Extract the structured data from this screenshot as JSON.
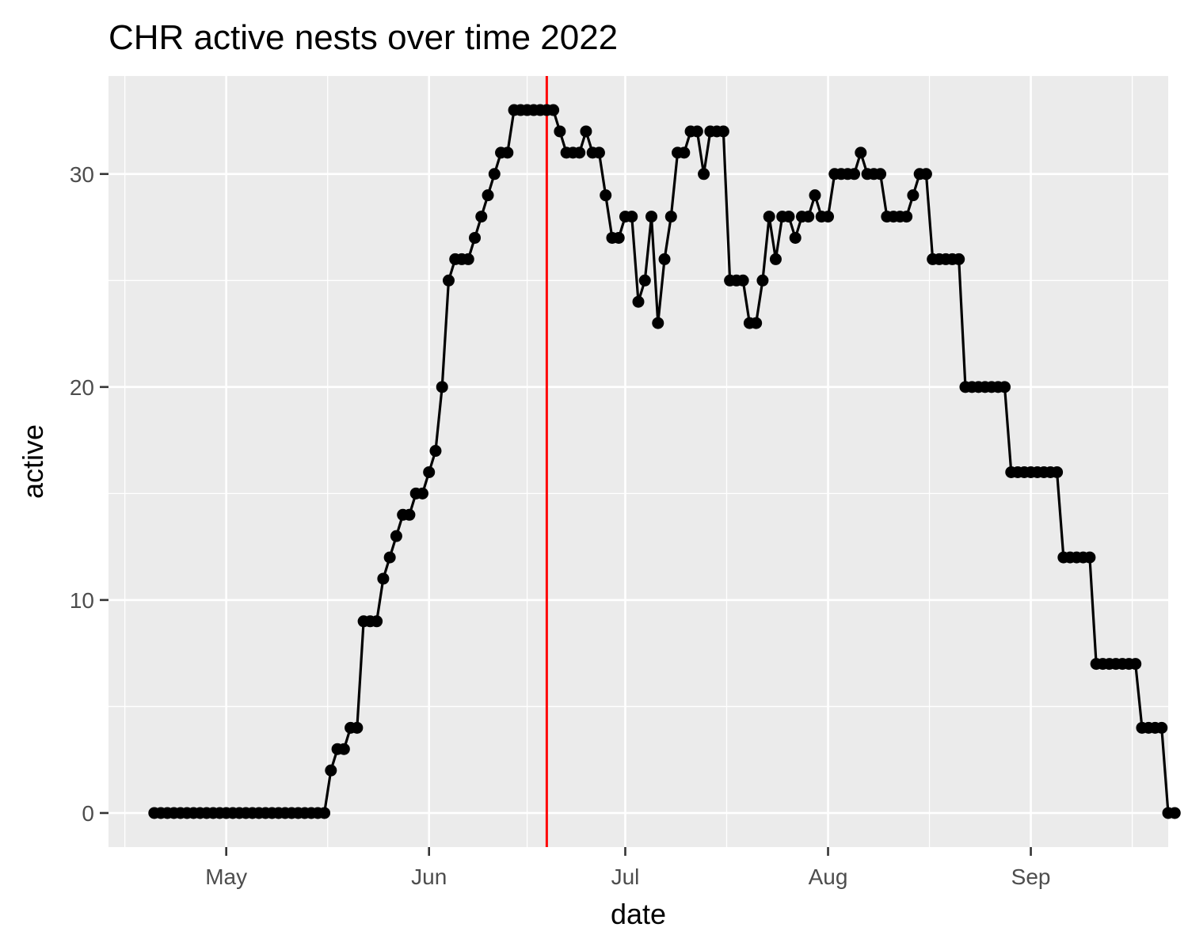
{
  "chart_data": {
    "type": "line",
    "title": "CHR active nests over time 2022",
    "xlabel": "date",
    "ylabel": "active",
    "x_axis": {
      "type": "date",
      "range": [
        "2022-04-13",
        "2022-09-22"
      ],
      "ticks": [
        {
          "date": "2022-05-01",
          "label": "May"
        },
        {
          "date": "2022-06-01",
          "label": "Jun"
        },
        {
          "date": "2022-07-01",
          "label": "Jul"
        },
        {
          "date": "2022-08-01",
          "label": "Aug"
        },
        {
          "date": "2022-09-01",
          "label": "Sep"
        }
      ]
    },
    "y_axis": {
      "range": [
        -1.6,
        34.6
      ],
      "ticks": [
        0,
        10,
        20,
        30
      ]
    },
    "grid": true,
    "reference_line": {
      "orientation": "vertical",
      "date": "2022-06-19",
      "color": "#ff0000"
    },
    "colors": {
      "panel": "#ebebeb",
      "grid": "#ffffff",
      "series": "#000000",
      "axis_text": "#4d4d4d"
    },
    "series": [
      {
        "points": [
          [
            "2022-04-20",
            0
          ],
          [
            "2022-04-21",
            0
          ],
          [
            "2022-04-22",
            0
          ],
          [
            "2022-04-23",
            0
          ],
          [
            "2022-04-24",
            0
          ],
          [
            "2022-04-25",
            0
          ],
          [
            "2022-04-26",
            0
          ],
          [
            "2022-04-27",
            0
          ],
          [
            "2022-04-28",
            0
          ],
          [
            "2022-04-29",
            0
          ],
          [
            "2022-04-30",
            0
          ],
          [
            "2022-05-01",
            0
          ],
          [
            "2022-05-02",
            0
          ],
          [
            "2022-05-03",
            0
          ],
          [
            "2022-05-04",
            0
          ],
          [
            "2022-05-05",
            0
          ],
          [
            "2022-05-06",
            0
          ],
          [
            "2022-05-07",
            0
          ],
          [
            "2022-05-08",
            0
          ],
          [
            "2022-05-09",
            0
          ],
          [
            "2022-05-10",
            0
          ],
          [
            "2022-05-11",
            0
          ],
          [
            "2022-05-12",
            0
          ],
          [
            "2022-05-13",
            0
          ],
          [
            "2022-05-14",
            0
          ],
          [
            "2022-05-15",
            0
          ],
          [
            "2022-05-16",
            0
          ],
          [
            "2022-05-17",
            2
          ],
          [
            "2022-05-18",
            3
          ],
          [
            "2022-05-19",
            3
          ],
          [
            "2022-05-20",
            4
          ],
          [
            "2022-05-21",
            4
          ],
          [
            "2022-05-22",
            9
          ],
          [
            "2022-05-23",
            9
          ],
          [
            "2022-05-24",
            9
          ],
          [
            "2022-05-25",
            11
          ],
          [
            "2022-05-26",
            12
          ],
          [
            "2022-05-27",
            13
          ],
          [
            "2022-05-28",
            14
          ],
          [
            "2022-05-29",
            14
          ],
          [
            "2022-05-30",
            15
          ],
          [
            "2022-05-31",
            15
          ],
          [
            "2022-06-01",
            16
          ],
          [
            "2022-06-02",
            17
          ],
          [
            "2022-06-03",
            20
          ],
          [
            "2022-06-04",
            25
          ],
          [
            "2022-06-05",
            26
          ],
          [
            "2022-06-06",
            26
          ],
          [
            "2022-06-07",
            26
          ],
          [
            "2022-06-08",
            27
          ],
          [
            "2022-06-09",
            28
          ],
          [
            "2022-06-10",
            29
          ],
          [
            "2022-06-11",
            30
          ],
          [
            "2022-06-12",
            31
          ],
          [
            "2022-06-13",
            31
          ],
          [
            "2022-06-14",
            33
          ],
          [
            "2022-06-15",
            33
          ],
          [
            "2022-06-16",
            33
          ],
          [
            "2022-06-17",
            33
          ],
          [
            "2022-06-18",
            33
          ],
          [
            "2022-06-19",
            33
          ],
          [
            "2022-06-20",
            33
          ],
          [
            "2022-06-21",
            32
          ],
          [
            "2022-06-22",
            31
          ],
          [
            "2022-06-23",
            31
          ],
          [
            "2022-06-24",
            31
          ],
          [
            "2022-06-25",
            32
          ],
          [
            "2022-06-26",
            31
          ],
          [
            "2022-06-27",
            31
          ],
          [
            "2022-06-28",
            29
          ],
          [
            "2022-06-29",
            27
          ],
          [
            "2022-06-30",
            27
          ],
          [
            "2022-07-01",
            28
          ],
          [
            "2022-07-02",
            28
          ],
          [
            "2022-07-03",
            24
          ],
          [
            "2022-07-04",
            25
          ],
          [
            "2022-07-05",
            28
          ],
          [
            "2022-07-06",
            23
          ],
          [
            "2022-07-07",
            26
          ],
          [
            "2022-07-08",
            28
          ],
          [
            "2022-07-09",
            31
          ],
          [
            "2022-07-10",
            31
          ],
          [
            "2022-07-11",
            32
          ],
          [
            "2022-07-12",
            32
          ],
          [
            "2022-07-13",
            30
          ],
          [
            "2022-07-14",
            32
          ],
          [
            "2022-07-15",
            32
          ],
          [
            "2022-07-16",
            32
          ],
          [
            "2022-07-17",
            25
          ],
          [
            "2022-07-18",
            25
          ],
          [
            "2022-07-19",
            25
          ],
          [
            "2022-07-20",
            23
          ],
          [
            "2022-07-21",
            23
          ],
          [
            "2022-07-22",
            25
          ],
          [
            "2022-07-23",
            28
          ],
          [
            "2022-07-24",
            26
          ],
          [
            "2022-07-25",
            28
          ],
          [
            "2022-07-26",
            28
          ],
          [
            "2022-07-27",
            27
          ],
          [
            "2022-07-28",
            28
          ],
          [
            "2022-07-29",
            28
          ],
          [
            "2022-07-30",
            29
          ],
          [
            "2022-07-31",
            28
          ],
          [
            "2022-08-01",
            28
          ],
          [
            "2022-08-02",
            30
          ],
          [
            "2022-08-03",
            30
          ],
          [
            "2022-08-04",
            30
          ],
          [
            "2022-08-05",
            30
          ],
          [
            "2022-08-06",
            31
          ],
          [
            "2022-08-07",
            30
          ],
          [
            "2022-08-08",
            30
          ],
          [
            "2022-08-09",
            30
          ],
          [
            "2022-08-10",
            28
          ],
          [
            "2022-08-11",
            28
          ],
          [
            "2022-08-12",
            28
          ],
          [
            "2022-08-13",
            28
          ],
          [
            "2022-08-14",
            29
          ],
          [
            "2022-08-15",
            30
          ],
          [
            "2022-08-16",
            30
          ],
          [
            "2022-08-17",
            26
          ],
          [
            "2022-08-18",
            26
          ],
          [
            "2022-08-19",
            26
          ],
          [
            "2022-08-20",
            26
          ],
          [
            "2022-08-21",
            26
          ],
          [
            "2022-08-22",
            20
          ],
          [
            "2022-08-23",
            20
          ],
          [
            "2022-08-24",
            20
          ],
          [
            "2022-08-25",
            20
          ],
          [
            "2022-08-26",
            20
          ],
          [
            "2022-08-27",
            20
          ],
          [
            "2022-08-28",
            20
          ],
          [
            "2022-08-29",
            16
          ],
          [
            "2022-08-30",
            16
          ],
          [
            "2022-08-31",
            16
          ],
          [
            "2022-09-01",
            16
          ],
          [
            "2022-09-02",
            16
          ],
          [
            "2022-09-03",
            16
          ],
          [
            "2022-09-04",
            16
          ],
          [
            "2022-09-05",
            16
          ],
          [
            "2022-09-06",
            12
          ],
          [
            "2022-09-07",
            12
          ],
          [
            "2022-09-08",
            12
          ],
          [
            "2022-09-09",
            12
          ],
          [
            "2022-09-10",
            12
          ],
          [
            "2022-09-11",
            7
          ],
          [
            "2022-09-12",
            7
          ],
          [
            "2022-09-13",
            7
          ],
          [
            "2022-09-14",
            7
          ],
          [
            "2022-09-15",
            7
          ],
          [
            "2022-09-16",
            7
          ],
          [
            "2022-09-17",
            7
          ],
          [
            "2022-09-18",
            4
          ],
          [
            "2022-09-19",
            4
          ],
          [
            "2022-09-20",
            4
          ],
          [
            "2022-09-21",
            4
          ],
          [
            "2022-09-22",
            0
          ],
          [
            "2022-09-23",
            0
          ]
        ]
      }
    ]
  }
}
